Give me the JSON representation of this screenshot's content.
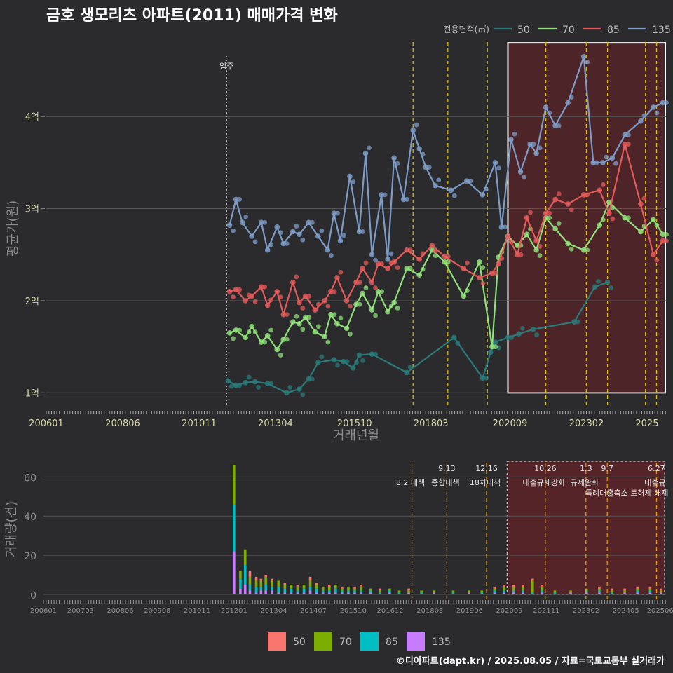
{
  "title": "금호 생모리츠 아파트(2011) 매매가격 변화",
  "caption": "©디아파트(dapt.kr) / 2025.08.05 / 자료=국토교통부 실거래가",
  "colors": {
    "background": "#2b2b2d",
    "grid": "#555555",
    "s50": "#2a7b7b",
    "s70": "#8fe07a",
    "s85": "#e55a5a",
    "s135": "#7d9cc8",
    "b50": "#f8766d",
    "b70": "#7cae00",
    "b85": "#00bfc4",
    "b135": "#c77cff",
    "highlight_fill": "#5a2428",
    "policy_line": "#e6c200"
  },
  "chart_data": [
    {
      "type": "line",
      "xlabel": "거래년월",
      "ylabel": "평균가(원)",
      "x_ticks": [
        "200601",
        "200806",
        "201011",
        "201304",
        "201510",
        "201803",
        "202009",
        "202302",
        "2025"
      ],
      "y_ticks": [
        {
          "label": "1억",
          "value": 1
        },
        {
          "label": "2억",
          "value": 2
        },
        {
          "label": "3억",
          "value": 3
        },
        {
          "label": "4억",
          "value": 4
        }
      ],
      "ylim": [
        0.85,
        4.9
      ],
      "xlim": [
        2006.0,
        2025.6
      ],
      "legend": {
        "title": "전용면적(㎡)",
        "position": "top-right"
      },
      "move_in": {
        "x": 2011.7,
        "label": "입주"
      },
      "policy_lines": [
        2017.6,
        2018.7,
        2019.95,
        2021.8,
        2023.08,
        2023.75,
        2024.95,
        2025.3
      ],
      "highlight": {
        "x0": 2020.6,
        "x1": 2025.6,
        "y0": 1.0,
        "y1": 4.8
      },
      "series": [
        {
          "name": "50",
          "color_key": "s50",
          "x": [
            2011.75,
            2012.0,
            2012.3,
            2012.6,
            2013.0,
            2013.6,
            2014.0,
            2014.3,
            2014.6,
            2015.1,
            2015.4,
            2015.7,
            2015.9,
            2016.3,
            2017.4,
            2018.9,
            2019.8,
            2020.05,
            2020.2,
            2020.6,
            2020.95,
            2021.4,
            2022.7,
            2023.35,
            2023.75
          ],
          "y": [
            1.13,
            1.08,
            1.11,
            1.12,
            1.1,
            1.0,
            1.04,
            1.15,
            1.33,
            1.36,
            1.34,
            1.27,
            1.41,
            1.42,
            1.22,
            1.6,
            1.16,
            1.44,
            1.55,
            1.6,
            1.64,
            1.69,
            1.77,
            2.15,
            2.2
          ]
        },
        {
          "name": "70",
          "color_key": "s70",
          "x": [
            2011.8,
            2012.0,
            2012.3,
            2012.5,
            2012.8,
            2013.0,
            2013.3,
            2013.5,
            2013.8,
            2014.0,
            2014.2,
            2014.5,
            2014.8,
            2015.0,
            2015.2,
            2015.5,
            2015.8,
            2016.0,
            2016.3,
            2016.5,
            2016.8,
            2017.0,
            2017.4,
            2017.8,
            2018.2,
            2018.6,
            2019.2,
            2019.7,
            2020.1,
            2020.3,
            2020.6,
            2020.9,
            2021.2,
            2021.5,
            2021.8,
            2022.1,
            2022.5,
            2023.0,
            2023.5,
            2023.8,
            2024.3,
            2024.8,
            2025.2,
            2025.5
          ],
          "y": [
            1.65,
            1.68,
            1.6,
            1.72,
            1.55,
            1.62,
            1.47,
            1.58,
            1.77,
            1.75,
            1.82,
            1.66,
            1.61,
            1.85,
            1.75,
            1.7,
            1.96,
            2.08,
            1.9,
            2.1,
            1.88,
            1.98,
            2.35,
            2.28,
            2.55,
            2.42,
            2.05,
            2.42,
            1.5,
            2.47,
            2.7,
            2.6,
            2.72,
            2.55,
            2.9,
            2.78,
            2.62,
            2.55,
            2.82,
            3.07,
            2.9,
            2.75,
            2.88,
            2.72
          ]
        },
        {
          "name": "85",
          "color_key": "s85",
          "x": [
            2011.8,
            2012.0,
            2012.3,
            2012.5,
            2012.8,
            2013.0,
            2013.3,
            2013.5,
            2013.8,
            2014.0,
            2014.2,
            2014.5,
            2014.8,
            2015.0,
            2015.2,
            2015.5,
            2015.8,
            2016.0,
            2016.3,
            2016.5,
            2016.8,
            2017.0,
            2017.4,
            2017.8,
            2018.2,
            2018.6,
            2019.2,
            2019.7,
            2020.1,
            2020.3,
            2020.6,
            2020.9,
            2021.2,
            2021.5,
            2021.8,
            2022.1,
            2022.5,
            2023.0,
            2023.5,
            2023.8,
            2024.3,
            2024.8,
            2025.2,
            2025.5
          ],
          "y": [
            2.1,
            2.12,
            2.0,
            2.05,
            2.15,
            1.95,
            2.1,
            1.85,
            2.2,
            1.98,
            2.05,
            1.9,
            2.0,
            2.1,
            2.25,
            2.0,
            2.2,
            2.35,
            2.2,
            2.4,
            2.35,
            2.42,
            2.55,
            2.45,
            2.6,
            2.48,
            2.35,
            2.25,
            2.3,
            2.4,
            2.7,
            2.5,
            2.9,
            2.65,
            2.95,
            3.1,
            3.05,
            3.15,
            3.2,
            2.95,
            3.7,
            3.05,
            2.5,
            2.65
          ]
        },
        {
          "name": "135",
          "color_key": "s135",
          "x": [
            2011.8,
            2012.0,
            2012.2,
            2012.5,
            2012.8,
            2013.0,
            2013.3,
            2013.5,
            2013.8,
            2014.0,
            2014.3,
            2014.6,
            2014.9,
            2015.1,
            2015.3,
            2015.6,
            2015.9,
            2016.1,
            2016.3,
            2016.6,
            2016.8,
            2017.0,
            2017.3,
            2017.6,
            2017.8,
            2018.0,
            2018.3,
            2018.8,
            2019.3,
            2019.8,
            2020.2,
            2020.4,
            2020.7,
            2021.0,
            2021.3,
            2021.5,
            2021.8,
            2022.1,
            2022.5,
            2023.0,
            2023.3,
            2023.6,
            2023.9,
            2024.3,
            2024.8,
            2025.2,
            2025.5
          ],
          "y": [
            2.82,
            3.1,
            2.85,
            2.7,
            2.85,
            2.55,
            2.8,
            2.62,
            2.75,
            2.72,
            2.85,
            2.7,
            2.55,
            2.95,
            2.65,
            3.35,
            2.75,
            3.6,
            2.5,
            3.15,
            2.45,
            3.55,
            3.1,
            3.85,
            3.65,
            3.45,
            3.25,
            3.2,
            3.3,
            3.15,
            3.5,
            2.8,
            3.75,
            3.4,
            3.7,
            3.6,
            4.1,
            3.9,
            4.15,
            4.65,
            3.5,
            3.5,
            3.55,
            3.8,
            3.95,
            4.1,
            4.15
          ]
        }
      ]
    },
    {
      "type": "bar",
      "ylabel": "거래량(건)",
      "stacked": true,
      "x_ticks": [
        "200601",
        "200703",
        "200806",
        "200908",
        "201011",
        "201201",
        "201304",
        "201407",
        "201510",
        "201612",
        "201803",
        "201906",
        "202009",
        "202111",
        "202302",
        "202405",
        "202506"
      ],
      "y_ticks": [
        0,
        20,
        40,
        60
      ],
      "ylim": [
        0,
        68
      ],
      "legend": {
        "position": "bottom",
        "entries": [
          {
            "name": "50",
            "color_key": "b50"
          },
          {
            "name": "70",
            "color_key": "b70"
          },
          {
            "name": "85",
            "color_key": "b85"
          },
          {
            "name": "135",
            "color_key": "b135"
          }
        ]
      },
      "annotations": [
        {
          "x": 2017.6,
          "date": "",
          "text": "8.2 대책",
          "text2": ""
        },
        {
          "x": 2018.7,
          "date": "9.13",
          "text": "종합대책",
          "text2": ""
        },
        {
          "x": 2019.95,
          "date": "12.16",
          "text": "18차대책",
          "text2": ""
        },
        {
          "x": 2021.8,
          "date": "10.26",
          "text": "대출규제강화",
          "text2": ""
        },
        {
          "x": 2023.08,
          "date": "1.3",
          "text": "규제완화",
          "text2": ""
        },
        {
          "x": 2023.75,
          "date": "9.7",
          "text": "",
          "text2": "특례대출축소 토허제 해제"
        },
        {
          "x": 2025.3,
          "date": "6.27",
          "text": "대출규",
          "text2": ""
        }
      ],
      "bars": [
        {
          "x": 2012.0,
          "v": [
            0,
            20,
            24,
            22
          ]
        },
        {
          "x": 2012.2,
          "v": [
            0,
            4,
            5,
            3
          ]
        },
        {
          "x": 2012.35,
          "v": [
            0,
            8,
            10,
            5
          ]
        },
        {
          "x": 2012.5,
          "v": [
            3,
            4,
            3,
            2
          ]
        },
        {
          "x": 2012.7,
          "v": [
            2,
            3,
            3,
            1
          ]
        },
        {
          "x": 2012.85,
          "v": [
            1,
            3,
            2,
            2
          ]
        },
        {
          "x": 2013.0,
          "v": [
            1,
            4,
            3,
            2
          ]
        },
        {
          "x": 2013.2,
          "v": [
            1,
            3,
            2,
            2
          ]
        },
        {
          "x": 2013.4,
          "v": [
            0,
            3,
            3,
            1
          ]
        },
        {
          "x": 2013.6,
          "v": [
            1,
            2,
            2,
            1
          ]
        },
        {
          "x": 2013.8,
          "v": [
            0,
            2,
            2,
            1
          ]
        },
        {
          "x": 2014.0,
          "v": [
            1,
            2,
            1,
            1
          ]
        },
        {
          "x": 2014.2,
          "v": [
            0,
            2,
            2,
            1
          ]
        },
        {
          "x": 2014.4,
          "v": [
            2,
            3,
            2,
            2
          ]
        },
        {
          "x": 2014.6,
          "v": [
            1,
            2,
            2,
            1
          ]
        },
        {
          "x": 2014.8,
          "v": [
            0,
            2,
            1,
            1
          ]
        },
        {
          "x": 2015.0,
          "v": [
            1,
            2,
            1,
            1
          ]
        },
        {
          "x": 2015.2,
          "v": [
            0,
            2,
            2,
            1
          ]
        },
        {
          "x": 2015.4,
          "v": [
            1,
            1,
            1,
            1
          ]
        },
        {
          "x": 2015.6,
          "v": [
            0,
            2,
            1,
            1
          ]
        },
        {
          "x": 2015.8,
          "v": [
            1,
            1,
            1,
            1
          ]
        },
        {
          "x": 2016.0,
          "v": [
            1,
            2,
            1,
            1
          ]
        },
        {
          "x": 2016.3,
          "v": [
            0,
            1,
            1,
            1
          ]
        },
        {
          "x": 2016.6,
          "v": [
            1,
            1,
            1,
            0
          ]
        },
        {
          "x": 2016.9,
          "v": [
            0,
            1,
            1,
            1
          ]
        },
        {
          "x": 2017.2,
          "v": [
            0,
            1,
            1,
            0
          ]
        },
        {
          "x": 2017.5,
          "v": [
            1,
            1,
            0,
            1
          ]
        },
        {
          "x": 2017.9,
          "v": [
            0,
            1,
            1,
            0
          ]
        },
        {
          "x": 2018.3,
          "v": [
            0,
            1,
            0,
            1
          ]
        },
        {
          "x": 2018.9,
          "v": [
            0,
            1,
            1,
            0
          ]
        },
        {
          "x": 2019.4,
          "v": [
            0,
            1,
            0,
            1
          ]
        },
        {
          "x": 2019.8,
          "v": [
            0,
            1,
            1,
            0
          ]
        },
        {
          "x": 2020.2,
          "v": [
            1,
            1,
            1,
            1
          ]
        },
        {
          "x": 2020.5,
          "v": [
            1,
            2,
            1,
            1
          ]
        },
        {
          "x": 2020.8,
          "v": [
            1,
            2,
            1,
            1
          ]
        },
        {
          "x": 2021.1,
          "v": [
            1,
            2,
            1,
            1
          ]
        },
        {
          "x": 2021.4,
          "v": [
            1,
            6,
            1,
            0
          ]
        },
        {
          "x": 2021.7,
          "v": [
            1,
            2,
            1,
            1
          ]
        },
        {
          "x": 2022.1,
          "v": [
            0,
            1,
            1,
            0
          ]
        },
        {
          "x": 2022.6,
          "v": [
            0,
            1,
            0,
            1
          ]
        },
        {
          "x": 2023.1,
          "v": [
            0,
            1,
            1,
            1
          ]
        },
        {
          "x": 2023.5,
          "v": [
            1,
            1,
            1,
            1
          ]
        },
        {
          "x": 2023.9,
          "v": [
            1,
            1,
            1,
            0
          ]
        },
        {
          "x": 2024.3,
          "v": [
            1,
            1,
            0,
            1
          ]
        },
        {
          "x": 2024.7,
          "v": [
            1,
            1,
            1,
            1
          ]
        },
        {
          "x": 2025.1,
          "v": [
            1,
            1,
            1,
            1
          ]
        },
        {
          "x": 2025.45,
          "v": [
            1,
            1,
            0,
            1
          ]
        }
      ]
    }
  ]
}
